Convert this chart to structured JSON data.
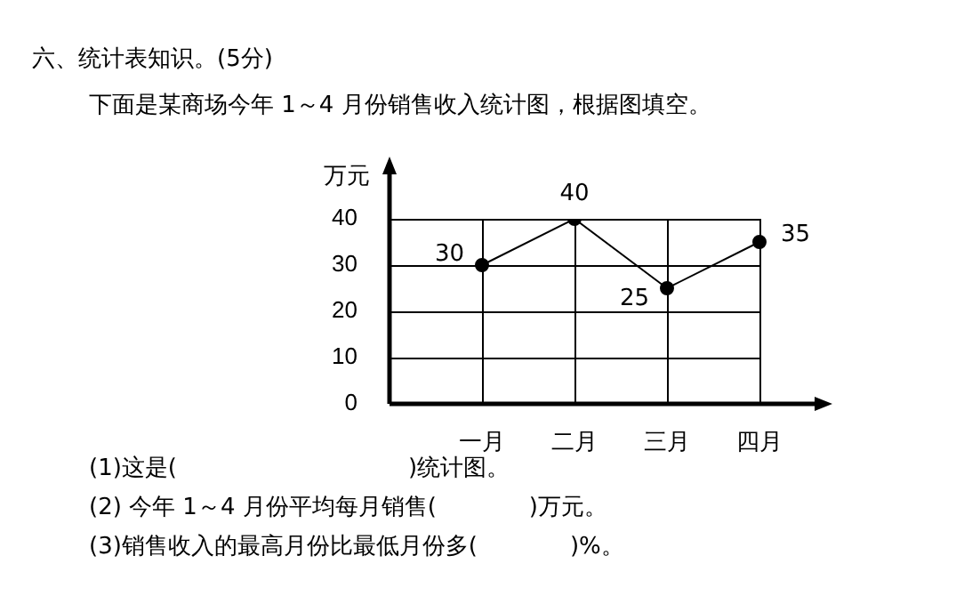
{
  "chart_data": {
    "type": "line",
    "title": "六、统计表知识。(5分)",
    "subtitle": "下面是某商场今年 1～4 月份销售收入统计图，根据图填空。",
    "ylabel": "万元",
    "categories": [
      "一月",
      "二月",
      "三月",
      "四月"
    ],
    "series": [
      {
        "color": "#000000",
        "values": [
          30,
          40,
          25,
          35
        ]
      }
    ],
    "ylim": [
      0,
      40
    ],
    "yticks": [
      0,
      10,
      20,
      30,
      40
    ],
    "grid": true,
    "marker": "circle",
    "line_style": "solid",
    "data_labels": true,
    "legend": false,
    "annotations": [
      "(1)这是(　　　　　　　　　　)统计图。",
      "(2) 今年 1～4 月份平均每月销售(　　　　)万元。",
      "(3)销售收入的最高月份比最低月份多(　　　　)%。"
    ]
  }
}
